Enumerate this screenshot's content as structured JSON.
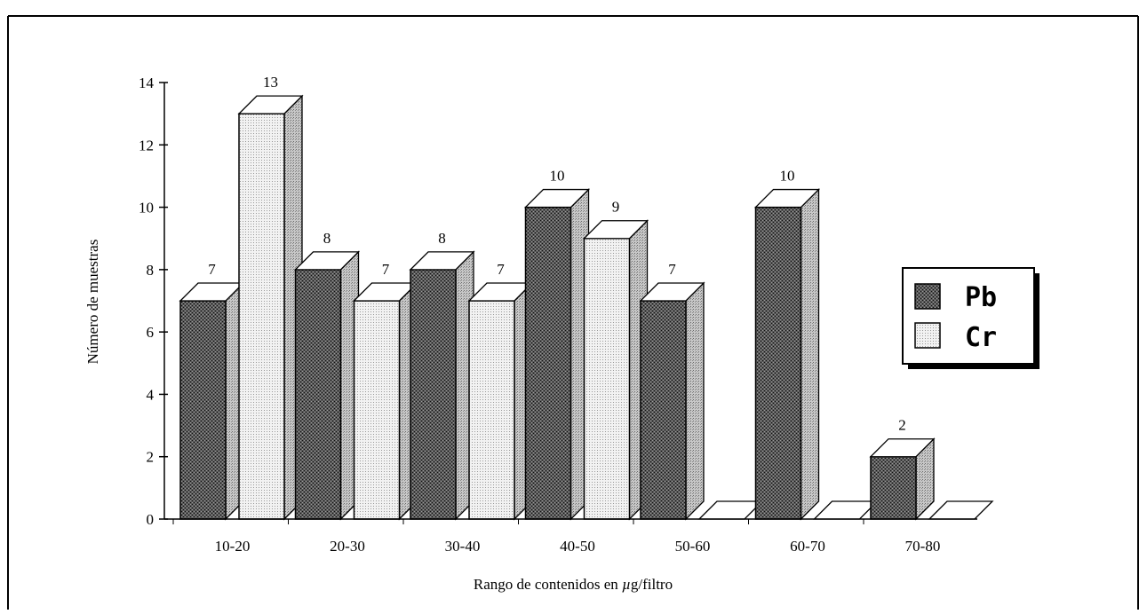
{
  "chart_data": {
    "type": "bar",
    "categories": [
      "10-20",
      "20-30",
      "30-40",
      "40-50",
      "50-60",
      "60-70",
      "70-80"
    ],
    "series": [
      {
        "name": "Pb",
        "values": [
          7,
          8,
          8,
          10,
          7,
          10,
          2
        ]
      },
      {
        "name": "Cr",
        "values": [
          13,
          7,
          7,
          9,
          0,
          0,
          0
        ]
      }
    ],
    "data_labels": {
      "Pb": [
        "7",
        "8",
        "8",
        "10",
        "7",
        "10",
        "2"
      ],
      "Cr": [
        "13",
        "7",
        "7",
        "9",
        "",
        "",
        ""
      ]
    },
    "title": "",
    "xlabel_prefix": "Rango de contenidos en ",
    "xlabel_mu": "µ",
    "xlabel_suffix": "g/filtro",
    "ylabel": "Número de muestras",
    "ylim": [
      0,
      14
    ],
    "yticks": [
      "0",
      "2",
      "4",
      "6",
      "8",
      "10",
      "12",
      "14"
    ],
    "grid": false,
    "legend_position": "right",
    "bar_style": "3d",
    "colors": {
      "Pb": "#3a3a3a",
      "Cr": "#dcdcdc"
    }
  }
}
